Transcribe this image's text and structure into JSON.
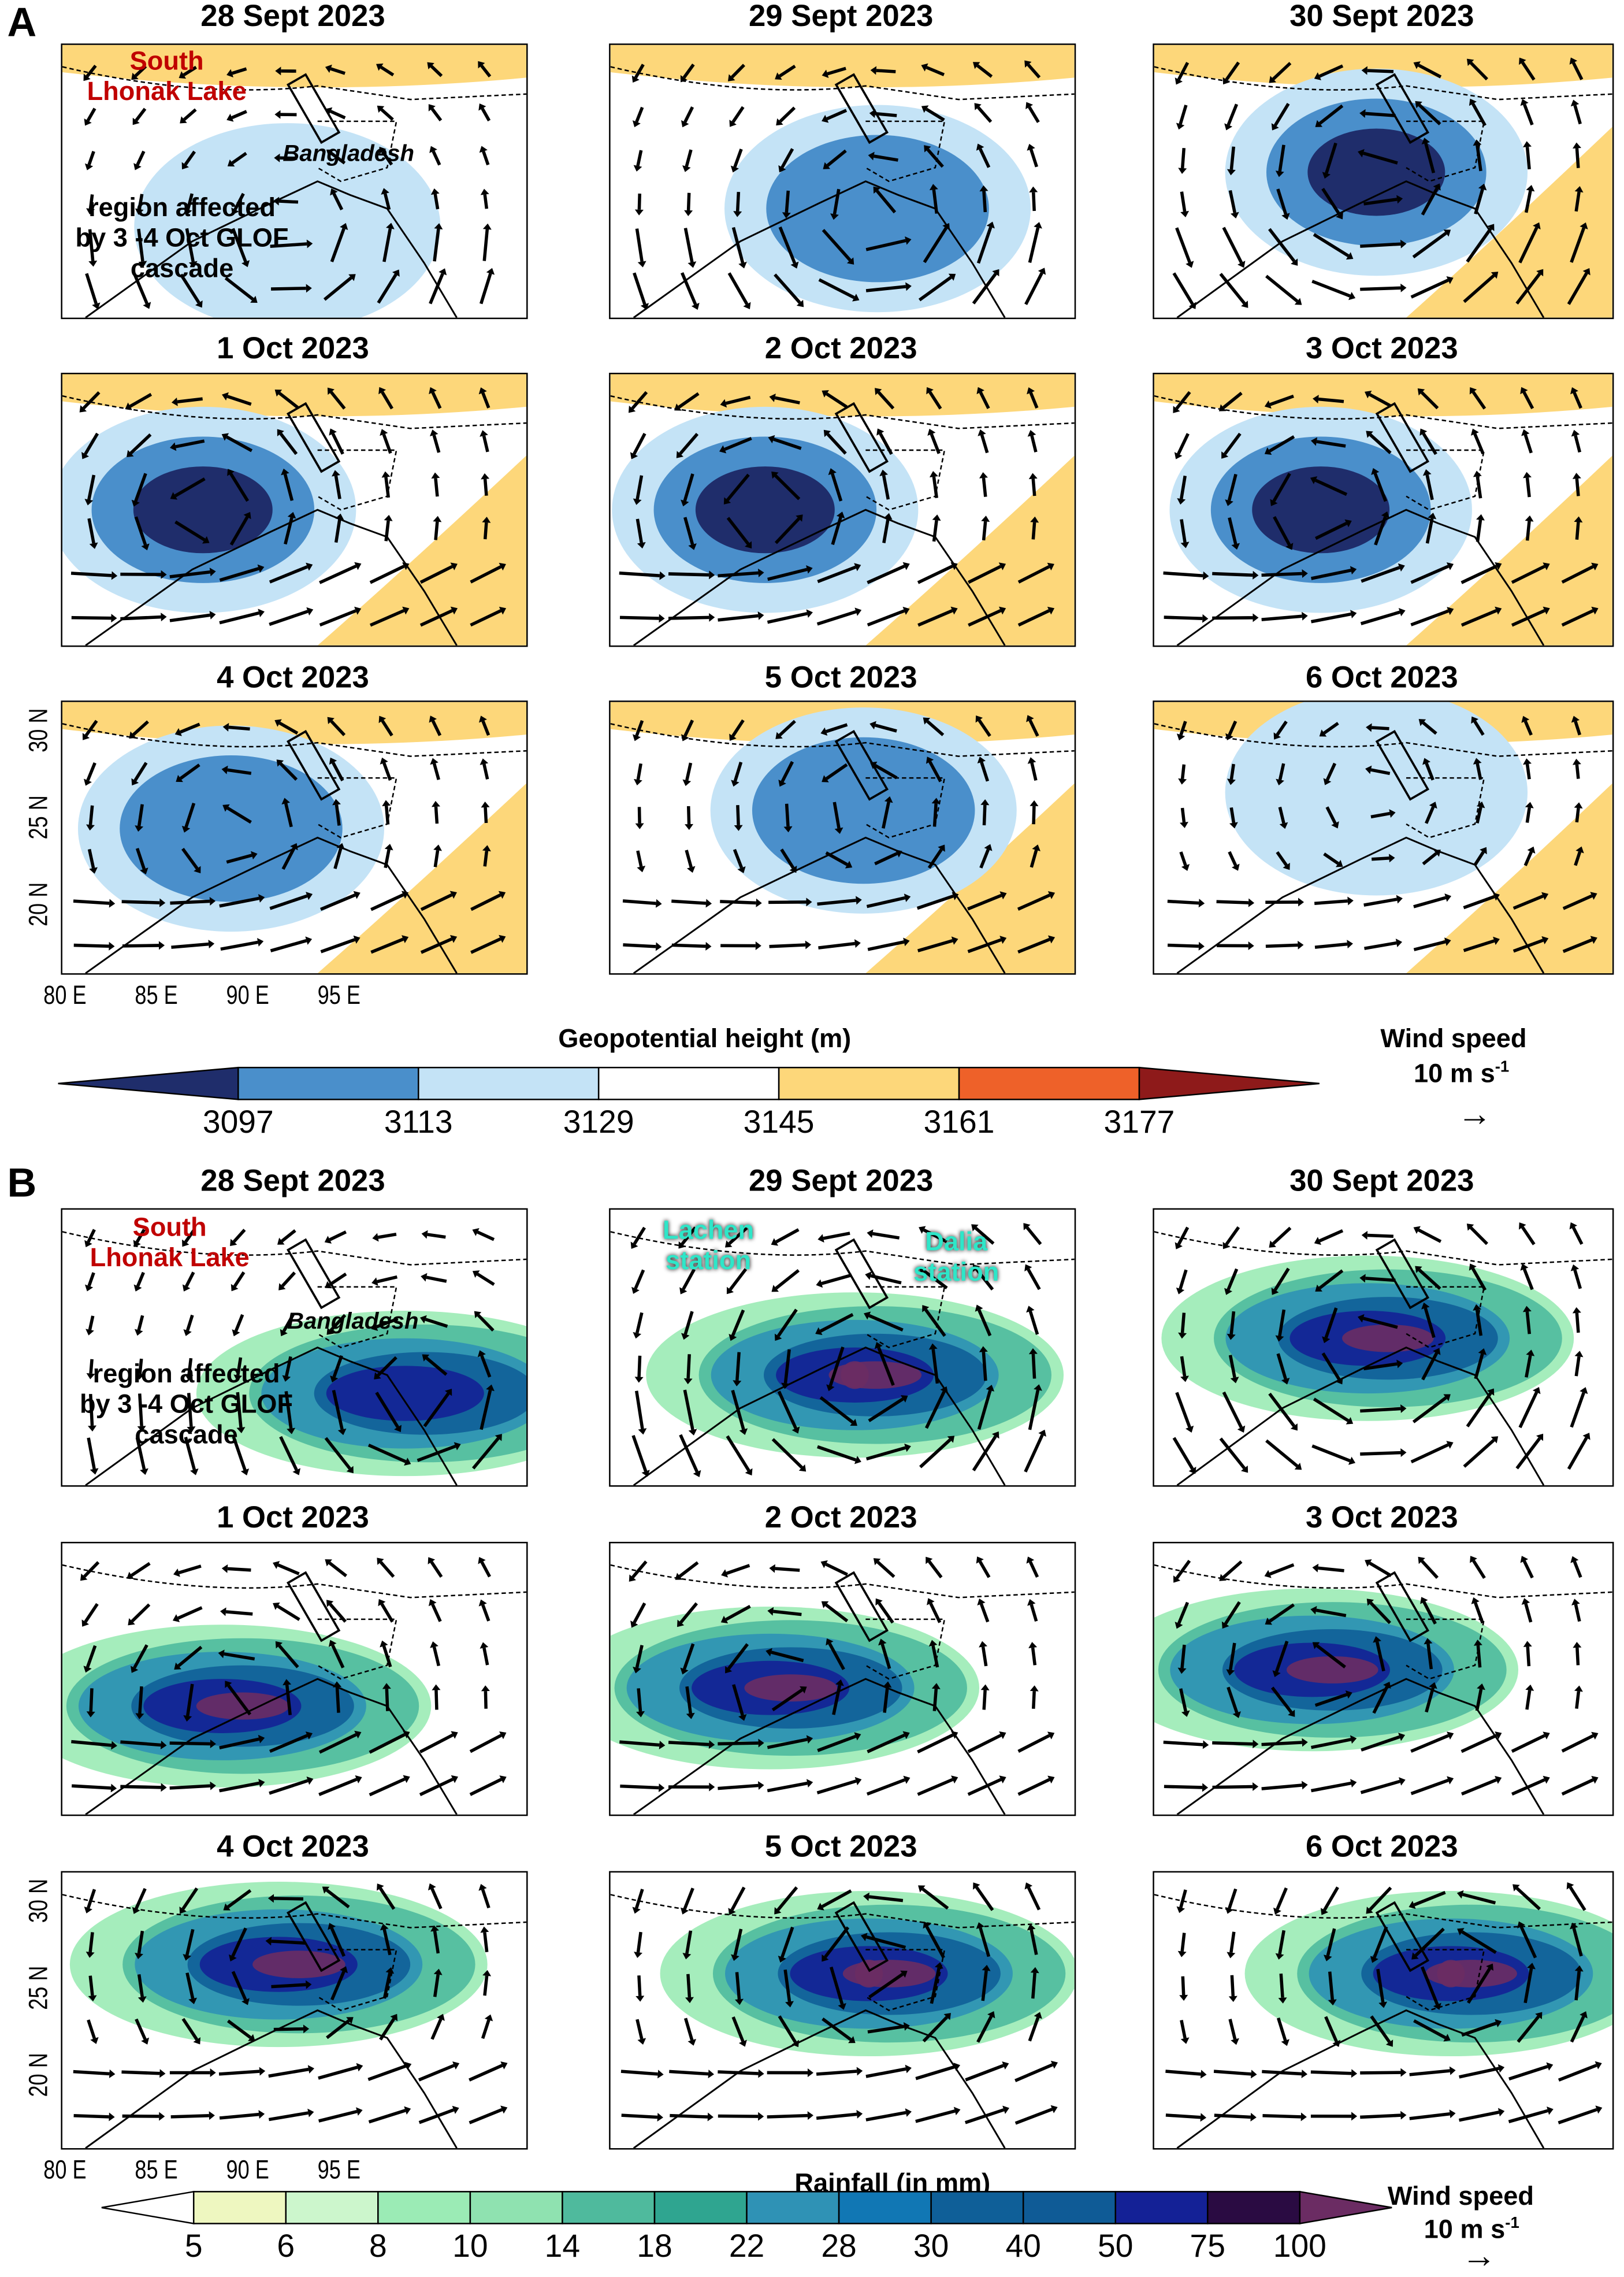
{
  "panel_a": {
    "letter": "A",
    "colorbar_title": "Geopotential height (m)",
    "colorbar_levels": [
      "3097",
      "3113",
      "3129",
      "3145",
      "3161",
      "3177"
    ],
    "colorbar_colors": [
      "#1f2d6b",
      "#4a8fcb",
      "#c4e3f6",
      "#ffffff",
      "#fdd77a",
      "#ee6129",
      "#8e1a1a"
    ],
    "panels": [
      {
        "date": "28 Sept 2023",
        "low": [
          88,
          21
        ],
        "level": 1
      },
      {
        "date": "29 Sept 2023",
        "low": [
          89.5,
          22
        ],
        "level": 2
      },
      {
        "date": "30 Sept 2023",
        "low": [
          88,
          24
        ],
        "level": 3
      },
      {
        "date": "1 Oct 2023",
        "low": [
          85,
          23.5
        ],
        "level": 3
      },
      {
        "date": "2 Oct 2023",
        "low": [
          85.5,
          23.5
        ],
        "level": 3
      },
      {
        "date": "3 Oct 2023",
        "low": [
          86,
          23.5
        ],
        "level": 3
      },
      {
        "date": "4 Oct 2023",
        "low": [
          86,
          24
        ],
        "level": 2
      },
      {
        "date": "5 Oct 2023",
        "low": [
          89,
          25
        ],
        "level": 2
      },
      {
        "date": "6 Oct 2023",
        "low": [
          88,
          26
        ],
        "level": 1
      }
    ]
  },
  "panel_b": {
    "letter": "B",
    "colorbar_title": "Rainfall (in mm)",
    "colorbar_levels": [
      "5",
      "6",
      "8",
      "10",
      "14",
      "18",
      "22",
      "28",
      "30",
      "40",
      "50",
      "75",
      "100"
    ],
    "colorbar_colors": [
      "#ffffff",
      "#eef7c0",
      "#ccf6cc",
      "#9bebb5",
      "#8fe2b0",
      "#4fba9d",
      "#2fa590",
      "#2f92b5",
      "#1177b4",
      "#0f5f98",
      "#0f5b96",
      "#142196",
      "#2a0b42",
      "#6b2c63"
    ],
    "panels": [
      {
        "date": "28 Sept 2023",
        "low": [
          92.5,
          21
        ],
        "level": 2
      },
      {
        "date": "29 Sept 2023",
        "low": [
          89,
          22
        ],
        "level": 4
      },
      {
        "date": "30 Sept 2023",
        "low": [
          88,
          24
        ],
        "level": 3
      },
      {
        "date": "1 Oct 2023",
        "low": [
          86,
          22
        ],
        "level": 3
      },
      {
        "date": "2 Oct 2023",
        "low": [
          86,
          23
        ],
        "level": 3
      },
      {
        "date": "3 Oct 2023",
        "low": [
          86,
          24
        ],
        "level": 3
      },
      {
        "date": "4 Oct 2023",
        "low": [
          88,
          26
        ],
        "level": 3
      },
      {
        "date": "5 Oct 2023",
        "low": [
          89.5,
          25.5
        ],
        "level": 4
      },
      {
        "date": "6 Oct 2023",
        "low": [
          91,
          25.5
        ],
        "level": 4
      }
    ]
  },
  "annotations": {
    "lake": "South\nLhonak Lake",
    "country": "Bangladesh",
    "legend_box": "region affected\nby 3 -4 Oct GLOF\ncascade",
    "lachen": "Lachen\nstation",
    "dalia": "Dalia\nstation"
  },
  "axes": {
    "lon_ticks": [
      "80 E",
      "85 E",
      "90 E",
      "95 E"
    ],
    "lat_ticks": [
      "30 N",
      "25 N",
      "20 N"
    ]
  },
  "wind_legend": {
    "title": "Wind speed",
    "value": "10 m s",
    "sup": "-1"
  }
}
